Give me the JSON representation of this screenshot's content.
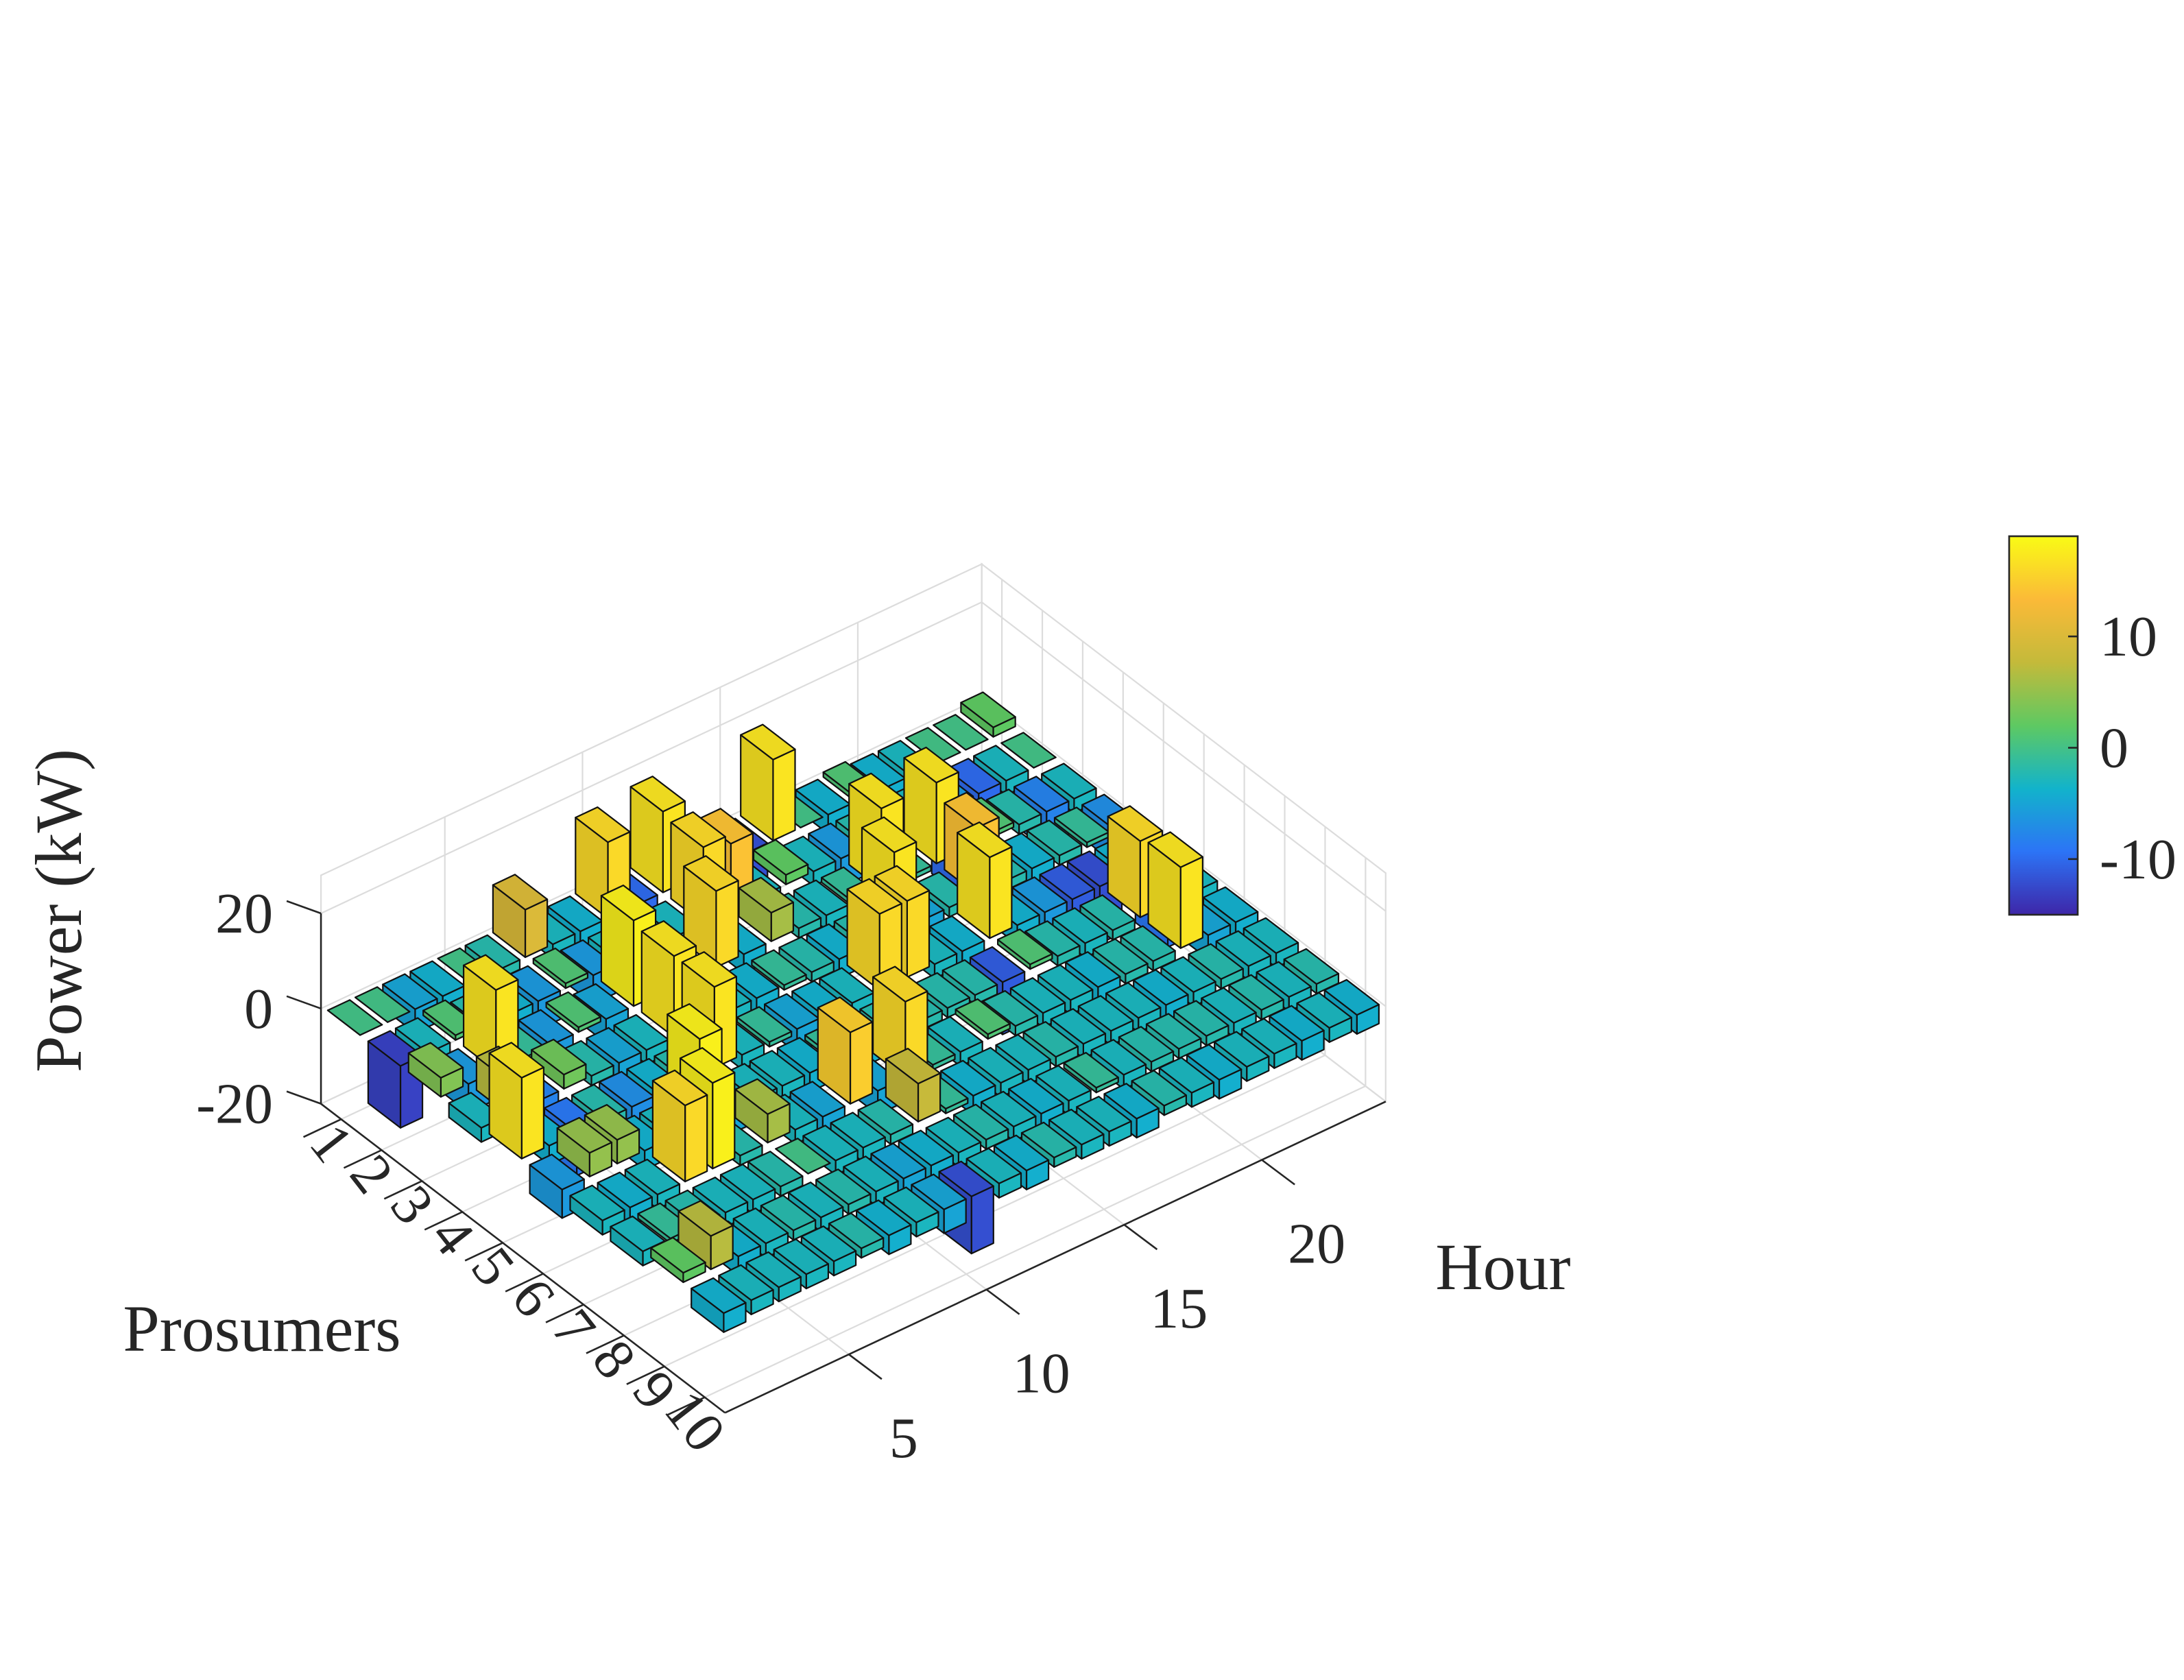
{
  "chart_data": {
    "type": "bar3",
    "title": "",
    "xlabel": "Hour",
    "ylabel": "Prosumers",
    "zlabel": "Power (kW)",
    "x_ticks": [
      "5",
      "10",
      "15",
      "20"
    ],
    "y_ticks": [
      "1",
      "2",
      "3",
      "4",
      "5",
      "6",
      "7",
      "8",
      "9",
      "10"
    ],
    "z_ticks": [
      "-20",
      "0",
      "20"
    ],
    "zlim": [
      -20,
      20
    ],
    "grid": "on",
    "colorbar": {
      "position": "right",
      "ticks": [
        "10",
        "0",
        "-10"
      ],
      "colormap": "parula",
      "colors": [
        "#3e26a8",
        "#2c74f6",
        "#12b3cb",
        "#5ec962",
        "#c4ba3a",
        "#fbba38",
        "#f9fb15"
      ],
      "range": [
        -15,
        19
      ]
    },
    "hours": [
      1,
      2,
      3,
      4,
      5,
      6,
      7,
      8,
      9,
      10,
      11,
      12,
      13,
      14,
      15,
      16,
      17,
      18,
      19,
      20,
      21,
      22,
      23,
      24
    ],
    "prosumers": [
      1,
      2,
      3,
      4,
      5,
      6,
      7,
      8,
      9,
      10
    ],
    "values": [
      [
        0,
        0,
        -5,
        -4,
        0,
        -2,
        10,
        -3,
        -4,
        16,
        -10,
        17,
        -2,
        -1,
        -12,
        17,
        0,
        -4,
        1,
        -4,
        -3,
        0,
        0,
        2
      ],
      [
        -13,
        -3,
        1,
        -2,
        -4,
        -6,
        1,
        -6,
        -3,
        -10,
        -3,
        16,
        14,
        -3,
        2,
        -3,
        -6,
        -2,
        -3,
        -3,
        -6,
        -10,
        -3,
        0
      ],
      [
        4,
        -6,
        17,
        -1,
        -6,
        1,
        -5,
        18,
        1,
        -3,
        16,
        -4,
        6,
        -2,
        -3,
        -1,
        17,
        -1,
        17,
        -10,
        1,
        -2,
        -8,
        -3
      ],
      [
        -3,
        7,
        -8,
        3,
        -2,
        -5,
        -3,
        17,
        -3,
        -3,
        -4,
        -1,
        -2,
        -4,
        -2,
        17,
        -5,
        -2,
        14,
        -2,
        -4,
        -2,
        -1,
        -7
      ],
      [
        17,
        -4,
        -9,
        -2,
        -7,
        -4,
        -2,
        17,
        -3,
        -1,
        -5,
        -4,
        -3,
        16,
        16,
        -3,
        -4,
        17,
        -4,
        -6,
        -11,
        -12,
        -4,
        -3
      ],
      [
        -6,
        5,
        5,
        -4,
        -3,
        18,
        -5,
        -3,
        -3,
        -4,
        -1,
        -4,
        -2,
        -2,
        -2,
        -2,
        -11,
        1,
        -2,
        -3,
        -2,
        16,
        -9,
        -3
      ],
      [
        -3,
        -4,
        -3,
        16,
        18,
        -2,
        6,
        -3,
        -5,
        15,
        -5,
        16,
        -1,
        -3,
        1,
        -2,
        -3,
        -3,
        -4,
        -2,
        -2,
        17,
        -5,
        -4
      ],
      [
        -3,
        -1,
        -2,
        -3,
        -3,
        -2,
        0,
        -3,
        -3,
        -2,
        8,
        -1,
        -4,
        -3,
        -3,
        -2,
        -3,
        -3,
        -3,
        -4,
        -3,
        -2,
        -3,
        -3
      ],
      [
        2,
        7,
        -4,
        -3,
        -2,
        -3,
        -2,
        -3,
        -5,
        -4,
        -3,
        -2,
        -3,
        -4,
        -3,
        -1,
        -3,
        -2,
        -2,
        -2,
        -3,
        -2,
        -3,
        -2
      ],
      [
        -4,
        -3,
        -3,
        -3,
        -3,
        -2,
        -4,
        -3,
        -5,
        -12,
        -3,
        -4,
        -2,
        -3,
        -3,
        -4,
        -2,
        -3,
        -4,
        -3,
        -3,
        -4,
        -3,
        -4
      ]
    ]
  }
}
